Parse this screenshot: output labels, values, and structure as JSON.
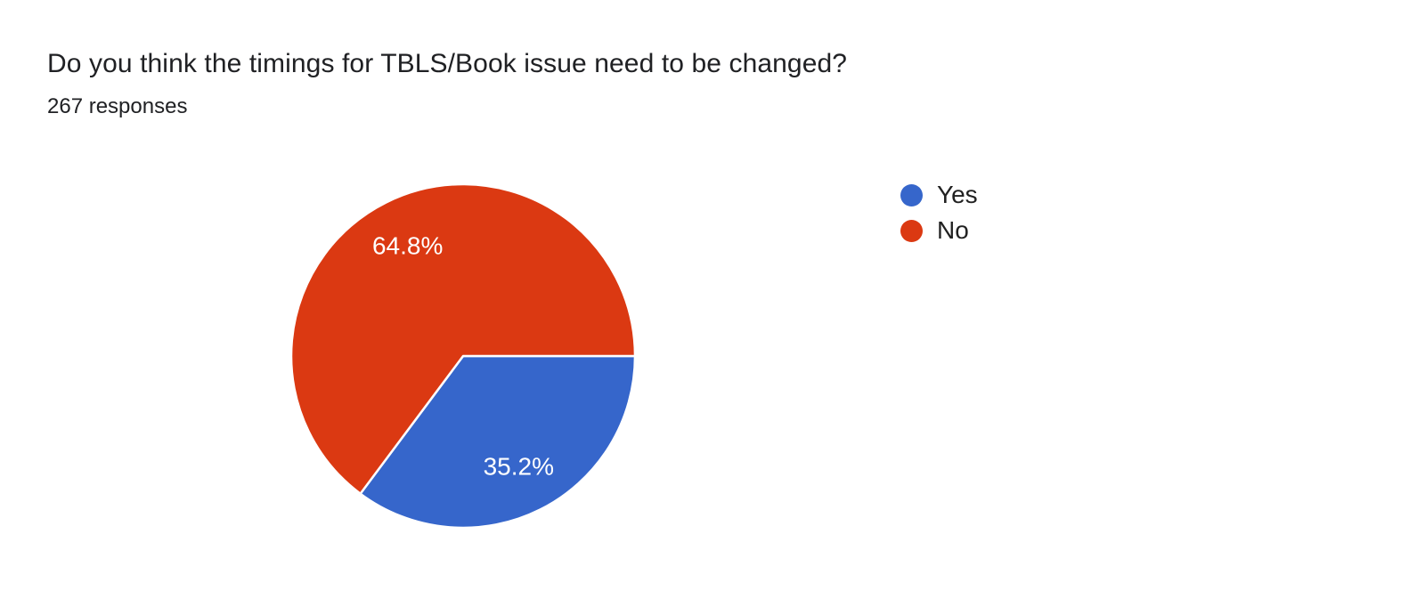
{
  "chart_data": {
    "type": "pie",
    "title": "Do you think the timings for TBLS/Book issue need to be changed?",
    "subtitle": "267 responses",
    "categories": [
      "Yes",
      "No"
    ],
    "values": [
      35.2,
      64.8
    ],
    "slice_labels": [
      "35.2%",
      "64.8%"
    ],
    "colors": [
      "#3666cb",
      "#db3912"
    ],
    "label_color": "#ffffff",
    "start_angle_deg": 0,
    "direction": "clockwise",
    "legend_position": "right",
    "grid": false
  }
}
